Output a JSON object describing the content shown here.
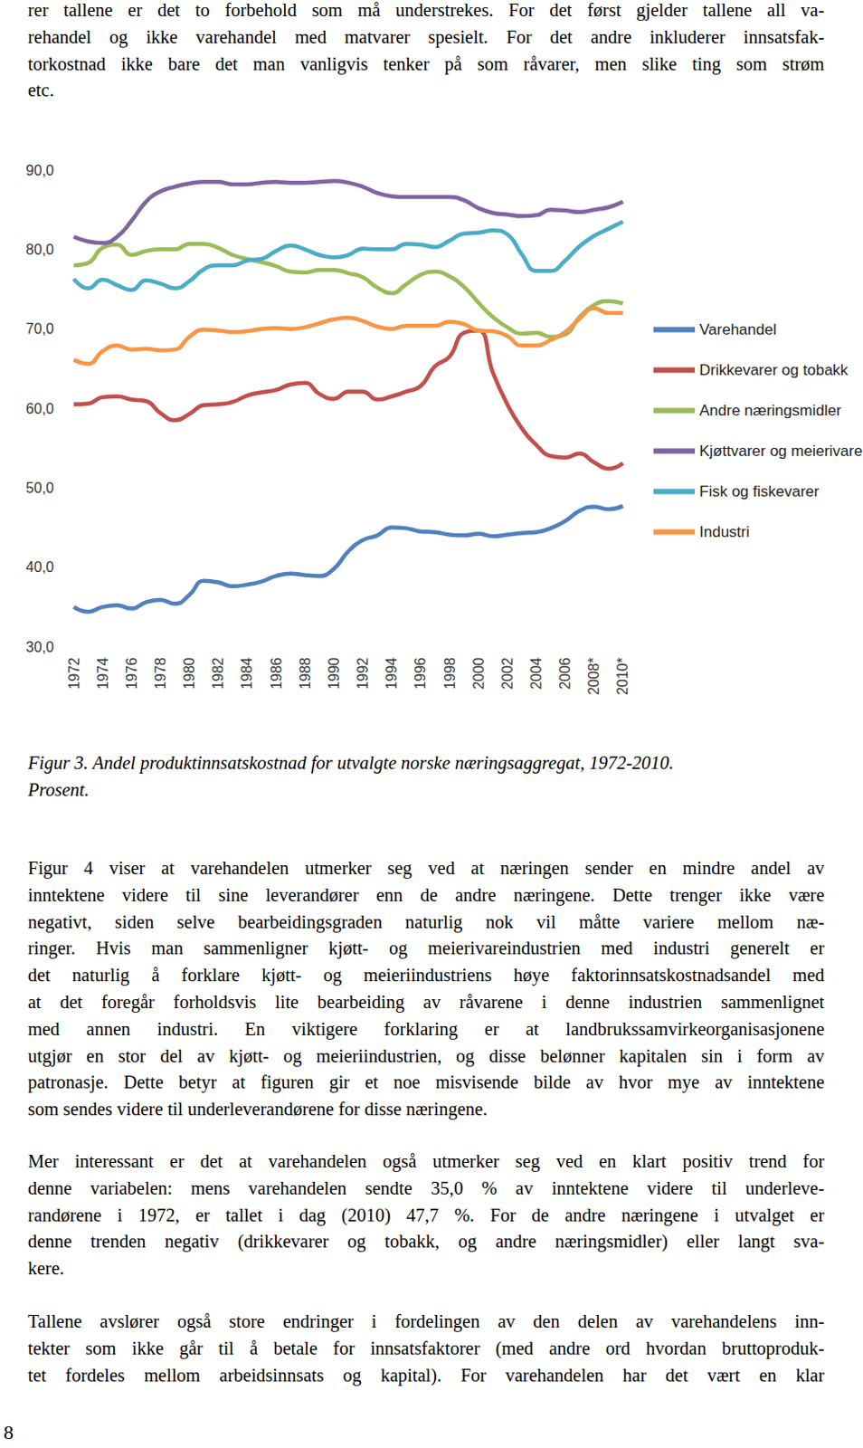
{
  "top_text": {
    "lines": [
      "rer tallene er det to forbehold som må understrekes. For det først gjelder tallene all va-",
      "rehandel og ikke varehandel med matvarer spesielt. For det andre inkluderer innsatsfak-",
      "torkostnad ikke bare det man vanligvis tenker på som råvarer, men slike ting som strøm",
      "etc."
    ]
  },
  "chart_data": {
    "type": "line",
    "categories": [
      "1972",
      null,
      "1974",
      null,
      "1976",
      null,
      "1978",
      null,
      "1980",
      null,
      "1982",
      null,
      "1984",
      null,
      "1986",
      null,
      "1988",
      null,
      "1990",
      null,
      "1992",
      null,
      "1994",
      null,
      "1996",
      null,
      "1998",
      null,
      "2000",
      null,
      "2002",
      null,
      "2004",
      null,
      "2006",
      null,
      "2008*",
      null,
      "2010*"
    ],
    "series": [
      {
        "name": "Varehandel",
        "color": "#4F81BD",
        "values": [
          35.0,
          34.4,
          35.0,
          35.2,
          34.8,
          35.6,
          35.9,
          35.4,
          36.5,
          38.3,
          38.1,
          37.6,
          37.8,
          38.2,
          38.9,
          39.2,
          39.0,
          38.9,
          39.8,
          42.0,
          43.4,
          44.0,
          45.0,
          44.9,
          44.5,
          44.4,
          44.1,
          44.0,
          44.2,
          43.9,
          44.1,
          44.3,
          44.4,
          44.9,
          45.8,
          47.1,
          47.6,
          47.3,
          47.7
        ]
      },
      {
        "name": "Drikkevarer og tobakk",
        "color": "#C0504D",
        "values": [
          60.5,
          60.6,
          61.4,
          61.5,
          61.1,
          60.9,
          59.4,
          58.5,
          59.3,
          60.4,
          60.5,
          60.8,
          61.6,
          62.0,
          62.3,
          63.0,
          63.2,
          61.8,
          61.2,
          62.1,
          62.1,
          61.1,
          61.5,
          62.1,
          62.8,
          65.3,
          66.5,
          69.5,
          69.8,
          64.5,
          60.5,
          57.5,
          55.4,
          54.0,
          53.8,
          54.3,
          53.2,
          52.4,
          53.1
        ]
      },
      {
        "name": "Andre næringsmidler",
        "color": "#9BBB59",
        "values": [
          78.0,
          78.3,
          80.2,
          80.6,
          79.3,
          79.8,
          80.0,
          80.0,
          80.7,
          80.7,
          80.2,
          79.3,
          78.8,
          78.4,
          77.9,
          77.2,
          77.1,
          77.4,
          77.4,
          77.0,
          76.5,
          75.2,
          74.5,
          75.6,
          76.8,
          77.2,
          76.6,
          75.3,
          73.3,
          71.5,
          70.2,
          69.4,
          69.5,
          69.0,
          69.3,
          71.5,
          73.0,
          73.5,
          73.2
        ]
      },
      {
        "name": "Kjøttvarer og meierivarer",
        "color": "#8064A2",
        "values": [
          81.6,
          81.0,
          80.8,
          81.6,
          83.6,
          86.0,
          87.3,
          87.9,
          88.3,
          88.5,
          88.5,
          88.2,
          88.2,
          88.4,
          88.5,
          88.4,
          88.4,
          88.5,
          88.6,
          88.4,
          87.9,
          87.1,
          86.7,
          86.6,
          86.6,
          86.6,
          86.6,
          86.2,
          85.2,
          84.6,
          84.4,
          84.2,
          84.3,
          85.0,
          84.9,
          84.7,
          85.0,
          85.3,
          86.0
        ]
      },
      {
        "name": "Fisk og fiskevarer",
        "color": "#4BACC6",
        "values": [
          76.3,
          75.1,
          76.2,
          75.5,
          74.9,
          76.1,
          75.7,
          75.1,
          76.0,
          77.5,
          78.0,
          78.0,
          78.6,
          78.8,
          79.8,
          80.5,
          80.0,
          79.3,
          79.0,
          79.3,
          80.1,
          80.0,
          80.0,
          80.7,
          80.6,
          80.3,
          81.1,
          82.0,
          82.1,
          82.4,
          81.9,
          79.4,
          77.3,
          77.3,
          78.6,
          80.4,
          81.7,
          82.6,
          83.5
        ]
      },
      {
        "name": "Industri",
        "color": "#F79646",
        "values": [
          66.1,
          65.6,
          67.2,
          67.9,
          67.4,
          67.5,
          67.3,
          67.4,
          69.0,
          69.9,
          69.8,
          69.6,
          69.7,
          70.0,
          70.1,
          70.0,
          70.2,
          70.7,
          71.2,
          71.4,
          71.0,
          70.3,
          70.0,
          70.4,
          70.4,
          70.4,
          70.9,
          70.6,
          69.8,
          69.7,
          69.1,
          67.9,
          67.9,
          68.6,
          69.6,
          71.3,
          72.6,
          72.0,
          72.0
        ]
      }
    ],
    "ylim": [
      30,
      90
    ],
    "yticks": [
      {
        "value": 30,
        "label": "30,0"
      },
      {
        "value": 40,
        "label": "40,0"
      },
      {
        "value": 50,
        "label": "50,0"
      },
      {
        "value": 60,
        "label": "60,0"
      },
      {
        "value": 70,
        "label": "70,0"
      },
      {
        "value": 80,
        "label": "80,0"
      },
      {
        "value": 90,
        "label": "90,0"
      }
    ],
    "grid": false,
    "legend": "right"
  },
  "caption": {
    "lines": [
      "Figur 3. Andel produktinnsatskostnad for utvalgte norske næringsaggregat, 1972-2010.",
      "Prosent."
    ]
  },
  "paragraphs": [
    {
      "lines": [
        "Figur 4 viser at varehandelen utmerker seg ved at næringen sender en mindre andel av",
        "inntektene videre til sine leverandører enn de andre næringene. Dette trenger ikke være",
        "negativt, siden selve bearbeidingsgraden naturlig nok vil måtte variere mellom næ-",
        "ringer. Hvis man sammenligner kjøtt- og meierivareindustrien med industri generelt er",
        "det naturlig å forklare kjøtt- og meieriindustriens høye faktorinnsatskostnadsandel med",
        "at det foregår forholdsvis lite bearbeiding av råvarene i denne industrien sammenlignet",
        "med annen industri. En viktigere forklaring er at landbrukssamvirkeorganisasjonene",
        "utgjør en stor del av kjøtt- og meieriindustrien, og disse belønner kapitalen sin i form av",
        "patronasje. Dette betyr at figuren gir et noe misvisende bilde av hvor mye av inntektene",
        "som sendes videre til underleverandørene for disse næringene."
      ]
    },
    {
      "lines": [
        "Mer interessant er det at varehandelen også utmerker seg ved en klart positiv trend for",
        "denne variabelen: mens varehandelen sendte 35,0 % av inntektene videre til underleve-",
        "randørene i 1972, er tallet i dag (2010) 47,7 %. For de andre næringene i utvalget er",
        "denne trenden negativ (drikkevarer og tobakk, og andre næringsmidler) eller langt sva-",
        "kere."
      ]
    },
    {
      "lines": [
        "Tallene avslører også store endringer i fordelingen av den delen av varehandelens inn-",
        "tekter som ikke går til å betale for innsatsfaktorer (med andre ord hvordan bruttoproduk-",
        "tet fordeles mellom arbeidsinnsats og kapital). For varehandelen har det vært en klar"
      ]
    }
  ],
  "page_number": "8"
}
